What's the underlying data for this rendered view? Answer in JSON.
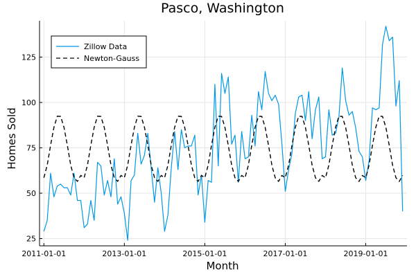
{
  "chart_data": {
    "type": "line",
    "title": "Pasco, Washington",
    "xlabel": "Month",
    "ylabel": "Homes Sold",
    "x_ticks": [
      "2011-01-01",
      "2013-01-01",
      "2015-01-01",
      "2017-01-01",
      "2019-01-01"
    ],
    "y_ticks": [
      25,
      50,
      75,
      100,
      125
    ],
    "xlim": [
      "2011-01-01",
      "2019-12-01"
    ],
    "ylim": [
      21,
      145
    ],
    "grid": true,
    "legend_position": "top-left",
    "series": [
      {
        "name": "Zillow Data",
        "color": "#0099e6",
        "dash": "solid",
        "x": [
          "2011-01-01",
          "2011-02-01",
          "2011-03-01",
          "2011-04-01",
          "2011-05-01",
          "2011-06-01",
          "2011-07-01",
          "2011-08-01",
          "2011-09-01",
          "2011-10-01",
          "2011-11-01",
          "2011-12-01",
          "2012-01-01",
          "2012-02-01",
          "2012-03-01",
          "2012-04-01",
          "2012-05-01",
          "2012-06-01",
          "2012-07-01",
          "2012-08-01",
          "2012-09-01",
          "2012-10-01",
          "2012-11-01",
          "2012-12-01",
          "2013-01-01",
          "2013-02-01",
          "2013-03-01",
          "2013-04-01",
          "2013-05-01",
          "2013-06-01",
          "2013-07-01",
          "2013-08-01",
          "2013-09-01",
          "2013-10-01",
          "2013-11-01",
          "2013-12-01",
          "2014-01-01",
          "2014-02-01",
          "2014-03-01",
          "2014-04-01",
          "2014-05-01",
          "2014-06-01",
          "2014-07-01",
          "2014-08-01",
          "2014-09-01",
          "2014-10-01",
          "2014-11-01",
          "2014-12-01",
          "2015-01-01",
          "2015-02-01",
          "2015-03-01",
          "2015-04-01",
          "2015-05-01",
          "2015-06-01",
          "2015-07-01",
          "2015-08-01",
          "2015-09-01",
          "2015-10-01",
          "2015-11-01",
          "2015-12-01",
          "2016-01-01",
          "2016-02-01",
          "2016-03-01",
          "2016-04-01",
          "2016-05-01",
          "2016-06-01",
          "2016-07-01",
          "2016-08-01",
          "2016-09-01",
          "2016-10-01",
          "2016-11-01",
          "2016-12-01",
          "2017-01-01",
          "2017-02-01",
          "2017-03-01",
          "2017-04-01",
          "2017-05-01",
          "2017-06-01",
          "2017-07-01",
          "2017-08-01",
          "2017-09-01",
          "2017-10-01",
          "2017-11-01",
          "2017-12-01",
          "2018-01-01",
          "2018-02-01",
          "2018-03-01",
          "2018-04-01",
          "2018-05-01",
          "2018-06-01",
          "2018-07-01",
          "2018-08-01",
          "2018-09-01",
          "2018-10-01",
          "2018-11-01",
          "2018-12-01",
          "2019-01-01",
          "2019-02-01",
          "2019-03-01",
          "2019-04-01",
          "2019-05-01",
          "2019-06-01",
          "2019-07-01",
          "2019-08-01",
          "2019-09-01",
          "2019-10-01",
          "2019-11-01",
          "2019-12-01"
        ],
        "y": [
          29,
          35,
          61,
          48,
          54,
          55,
          53,
          53,
          49,
          61,
          46,
          46,
          31,
          33,
          46,
          35,
          67,
          65,
          49,
          57,
          48,
          69,
          44,
          48,
          39,
          24,
          57,
          60,
          83,
          66,
          71,
          83,
          64,
          45,
          64,
          50,
          29,
          38,
          64,
          84,
          63,
          85,
          75,
          76,
          76,
          82,
          49,
          60,
          34,
          57,
          56,
          110,
          65,
          116,
          105,
          114,
          77,
          82,
          56,
          84,
          69,
          70,
          93,
          76,
          106,
          96,
          117,
          105,
          101,
          104,
          99,
          77,
          51,
          63,
          72,
          94,
          103,
          104,
          90,
          106,
          80,
          96,
          103,
          69,
          70,
          96,
          82,
          83,
          92,
          119,
          101,
          93,
          95,
          86,
          73,
          70,
          57,
          68,
          97,
          96,
          97,
          132,
          142,
          134,
          136,
          98,
          112,
          40
        ]
      },
      {
        "name": "Newton-Gauss",
        "color": "#000000",
        "dash": "dashed",
        "x": [
          "2011-01-01",
          "2011-02-01",
          "2011-03-01",
          "2011-04-01",
          "2011-05-01",
          "2011-06-01",
          "2011-07-01",
          "2011-08-01",
          "2011-09-01",
          "2011-10-01",
          "2011-11-01",
          "2011-12-01",
          "2012-01-01",
          "2012-02-01",
          "2012-03-01",
          "2012-04-01",
          "2012-05-01",
          "2012-06-01",
          "2012-07-01",
          "2012-08-01",
          "2012-09-01",
          "2012-10-01",
          "2012-11-01",
          "2012-12-01",
          "2013-01-01",
          "2013-02-01",
          "2013-03-01",
          "2013-04-01",
          "2013-05-01",
          "2013-06-01",
          "2013-07-01",
          "2013-08-01",
          "2013-09-01",
          "2013-10-01",
          "2013-11-01",
          "2013-12-01",
          "2014-01-01",
          "2014-02-01",
          "2014-03-01",
          "2014-04-01",
          "2014-05-01",
          "2014-06-01",
          "2014-07-01",
          "2014-08-01",
          "2014-09-01",
          "2014-10-01",
          "2014-11-01",
          "2014-12-01",
          "2015-01-01",
          "2015-02-01",
          "2015-03-01",
          "2015-04-01",
          "2015-05-01",
          "2015-06-01",
          "2015-07-01",
          "2015-08-01",
          "2015-09-01",
          "2015-10-01",
          "2015-11-01",
          "2015-12-01",
          "2016-01-01",
          "2016-02-01",
          "2016-03-01",
          "2016-04-01",
          "2016-05-01",
          "2016-06-01",
          "2016-07-01",
          "2016-08-01",
          "2016-09-01",
          "2016-10-01",
          "2016-11-01",
          "2016-12-01",
          "2017-01-01",
          "2017-02-01",
          "2017-03-01",
          "2017-04-01",
          "2017-05-01",
          "2017-06-01",
          "2017-07-01",
          "2017-08-01",
          "2017-09-01",
          "2017-10-01",
          "2017-11-01",
          "2017-12-01",
          "2018-01-01",
          "2018-02-01",
          "2018-03-01",
          "2018-04-01",
          "2018-05-01",
          "2018-06-01",
          "2018-07-01",
          "2018-08-01",
          "2018-09-01",
          "2018-10-01",
          "2018-11-01",
          "2018-12-01",
          "2019-01-01",
          "2019-02-01",
          "2019-03-01",
          "2019-04-01",
          "2019-05-01",
          "2019-06-01",
          "2019-07-01",
          "2019-08-01",
          "2019-09-01",
          "2019-10-01",
          "2019-11-01",
          "2019-12-01"
        ],
        "y": [
          58.5,
          65.5,
          76.4,
          86.3,
          92.4,
          92.3,
          86.3,
          76.4,
          65.5,
          58.5,
          56.5,
          59.8,
          58.5,
          65.5,
          76.4,
          86.3,
          92.4,
          92.3,
          86.3,
          76.4,
          65.5,
          58.5,
          56.5,
          59.8,
          58.5,
          65.5,
          76.4,
          86.3,
          92.4,
          92.3,
          86.3,
          76.4,
          65.5,
          58.5,
          56.5,
          59.8,
          58.5,
          65.5,
          76.4,
          86.3,
          92.4,
          92.3,
          86.3,
          76.4,
          65.5,
          58.5,
          56.5,
          59.8,
          58.5,
          65.5,
          76.4,
          86.3,
          92.4,
          92.3,
          86.3,
          76.4,
          65.5,
          58.5,
          56.5,
          59.8,
          58.5,
          65.5,
          76.4,
          86.3,
          92.4,
          92.3,
          86.3,
          76.4,
          65.5,
          58.5,
          56.5,
          59.8,
          58.5,
          65.5,
          76.4,
          86.3,
          92.4,
          92.3,
          86.3,
          76.4,
          65.5,
          58.5,
          56.5,
          59.8,
          58.5,
          65.5,
          76.4,
          86.3,
          92.4,
          92.3,
          86.3,
          76.4,
          65.5,
          58.5,
          56.5,
          59.8,
          58.5,
          65.5,
          76.4,
          86.3,
          92.4,
          92.3,
          86.3,
          76.4,
          65.5,
          58.5,
          56.5,
          59.8
        ]
      }
    ]
  }
}
